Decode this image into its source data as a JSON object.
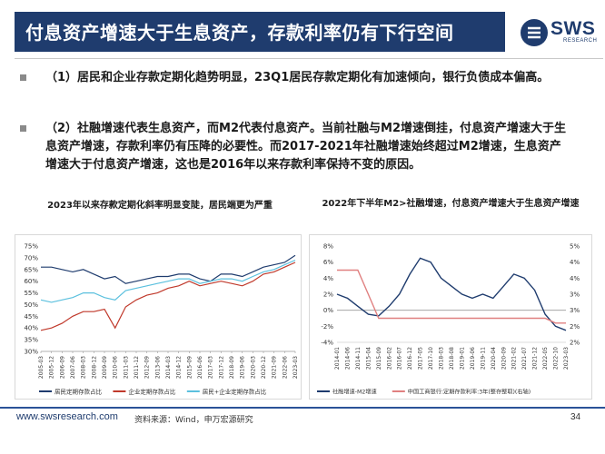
{
  "header": {
    "title": "付息资产增速大于生息资产，存款利率仍有下行空间",
    "logo_text": "SWS",
    "logo_sub": "RESEARCH"
  },
  "bullets": [
    "（1）居民和企业存款定期化趋势明显，23Q1居民存款定期化有加速倾向，银行负债成本偏高。",
    "（2）社融增速代表生息资产，而M2代表付息资产。当前社融与M2增速倒挂，付息资产增速大于生息资产增速，存款利率仍有压降的必要性。而2017-2021年社融增速始终超过M2增速，生息资产增速大于付息资产增速，这也是2016年以来存款利率保持不变的原因。"
  ],
  "footer": {
    "url": "www.swsresearch.com",
    "source": "资料来源：Wind，申万宏源研究",
    "page": "34"
  },
  "chart_data": [
    {
      "type": "line",
      "title": "2023年以来存款定期化斜率明显变陡，居民端更为严重",
      "x": [
        "2005-03",
        "2005-12",
        "2006-09",
        "2007-06",
        "2008-03",
        "2008-12",
        "2009-09",
        "2010-06",
        "2011-03",
        "2011-12",
        "2012-09",
        "2013-06",
        "2014-03",
        "2014-12",
        "2015-09",
        "2016-06",
        "2017-03",
        "2017-12",
        "2018-09",
        "2019-06",
        "2020-03",
        "2020-12",
        "2021-09",
        "2022-06",
        "2023-03"
      ],
      "yticks": [
        "75%",
        "70%",
        "65%",
        "60%",
        "55%",
        "50%",
        "45%",
        "40%",
        "35%",
        "30%"
      ],
      "ylim": [
        30,
        75
      ],
      "series": [
        {
          "name": "居民定期存款占比",
          "color": "#1f3c6e",
          "values": [
            66,
            66,
            65,
            64,
            65,
            63,
            61,
            62,
            59,
            60,
            61,
            62,
            62,
            63,
            63,
            61,
            60,
            63,
            63,
            62,
            64,
            66,
            67,
            68,
            71
          ]
        },
        {
          "name": "企业定期存款占比",
          "color": "#c0392b",
          "values": [
            39,
            40,
            42,
            45,
            47,
            47,
            48,
            40,
            49,
            52,
            54,
            55,
            57,
            58,
            60,
            58,
            59,
            60,
            59,
            58,
            60,
            63,
            64,
            66,
            68
          ]
        },
        {
          "name": "居民+企业定期存款占比",
          "color": "#5bc0de",
          "values": [
            52,
            51,
            52,
            53,
            55,
            55,
            53,
            52,
            56,
            57,
            58,
            59,
            60,
            61,
            61,
            59,
            60,
            61,
            61,
            60,
            62,
            64,
            65,
            67,
            69
          ]
        }
      ]
    },
    {
      "type": "line",
      "title": "2022年下半年M2>社融增速，付息资产增速大于生息资产增速",
      "x": [
        "2014-01",
        "2014-06",
        "2014-11",
        "2015-04",
        "2015-09",
        "2016-02",
        "2016-07",
        "2016-12",
        "2017-05",
        "2017-10",
        "2018-03",
        "2018-08",
        "2019-01",
        "2019-06",
        "2019-11",
        "2020-04",
        "2020-09",
        "2021-02",
        "2021-07",
        "2021-12",
        "2022-05",
        "2022-10",
        "2023-03"
      ],
      "yticks_left": [
        "8%",
        "6%",
        "4%",
        "2%",
        "0%",
        "-2%",
        "-4%"
      ],
      "yticks_right": [
        "5%",
        "4%",
        "4%",
        "3%",
        "3%",
        "2%",
        "2%"
      ],
      "ylim_left": [
        -4,
        8
      ],
      "ylim_right": [
        2,
        5
      ],
      "series": [
        {
          "name": "社融增速-M2增速",
          "color": "#1f3c6e",
          "axis": "left",
          "values": [
            2,
            1.5,
            0.5,
            -0.5,
            -0.7,
            0.5,
            2,
            4.5,
            6.5,
            6,
            4,
            3,
            2,
            1.5,
            2,
            1.5,
            3,
            4.5,
            4,
            2.5,
            -0.5,
            -2,
            -2.5
          ]
        },
        {
          "name": "中国工商银行:定期存款利率:3年(整存整取)(右轴)",
          "color": "#e08080",
          "axis": "right",
          "values": [
            4.25,
            4.25,
            4.25,
            3.5,
            2.75,
            2.75,
            2.75,
            2.75,
            2.75,
            2.75,
            2.75,
            2.75,
            2.75,
            2.75,
            2.75,
            2.75,
            2.75,
            2.75,
            2.75,
            2.75,
            2.75,
            2.6,
            2.6
          ]
        }
      ]
    }
  ]
}
